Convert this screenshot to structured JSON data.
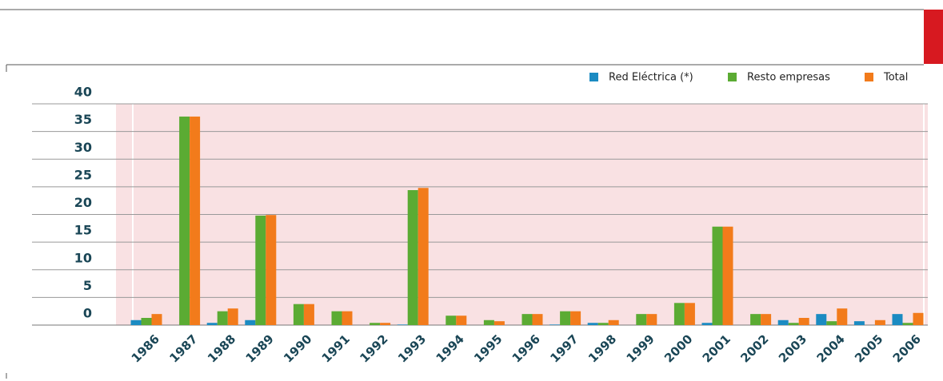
{
  "chart_data": {
    "type": "bar",
    "categories": [
      "1986",
      "1987",
      "1988",
      "1989",
      "1990",
      "1991",
      "1992",
      "1993",
      "1994",
      "1995",
      "1996",
      "1997",
      "1998",
      "1999",
      "2000",
      "2001",
      "2002",
      "2003",
      "2004",
      "2005",
      "2006"
    ],
    "series": [
      {
        "name": "Red Eléctrica (*)",
        "color": "#1b8bc2",
        "values": [
          0.9,
          0,
          0.4,
          0.9,
          0,
          0,
          0,
          0.1,
          0,
          0,
          0,
          0.1,
          0.4,
          0,
          0,
          0.4,
          0,
          0.9,
          2.0,
          0.7,
          2.0
        ]
      },
      {
        "name": "Resto empresas",
        "color": "#5bab33",
        "values": [
          1.3,
          37.7,
          2.5,
          19.8,
          3.8,
          2.5,
          0.4,
          24.4,
          1.7,
          0.9,
          2.0,
          2.5,
          0.4,
          2.0,
          4.0,
          17.8,
          2.0,
          0.4,
          0.7,
          0,
          0.4
        ]
      },
      {
        "name": "Total",
        "color": "#f27b1b",
        "values": [
          2.0,
          37.7,
          3.0,
          19.9,
          3.8,
          2.5,
          0.4,
          24.8,
          1.7,
          0.7,
          2.0,
          2.5,
          0.9,
          2.0,
          4.0,
          17.8,
          2.0,
          1.3,
          3.0,
          0.9,
          2.2
        ]
      }
    ],
    "ylim": [
      0,
      40
    ],
    "yticks": [
      0,
      5,
      10,
      15,
      20,
      25,
      30,
      35,
      40
    ],
    "grid": true
  }
}
